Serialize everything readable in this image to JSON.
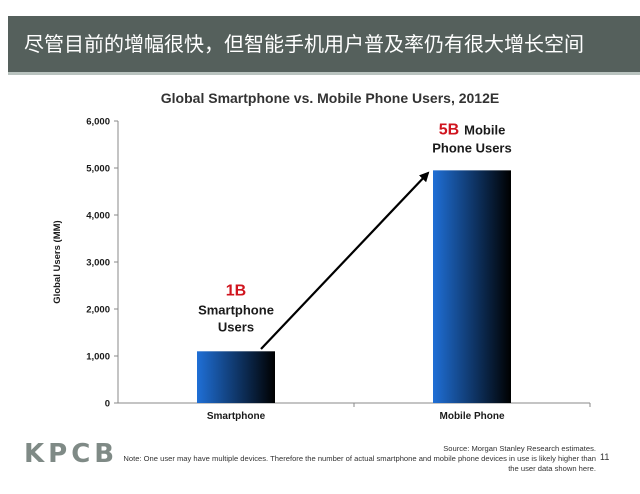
{
  "header": {
    "title": "尽管目前的增幅很快，但智能手机用户普及率仍有很大增长空间"
  },
  "chart_data": {
    "type": "bar",
    "title": "Global Smartphone vs. Mobile Phone Users, 2012E",
    "xlabel": "",
    "ylabel": "Global Users (MM)",
    "ylim": [
      0,
      6000
    ],
    "yticks": [
      "0",
      "1,000",
      "2,000",
      "3,000",
      "4,000",
      "5,000",
      "6,000"
    ],
    "grid": false,
    "legend": "none",
    "categories": [
      "Smartphone",
      "Mobile Phone"
    ],
    "values": [
      1100,
      4950
    ],
    "annotations": [
      {
        "highlight": "1B",
        "line1": "",
        "line2": "Smartphone",
        "line3": "Users"
      },
      {
        "highlight": "5B",
        "line1": "Mobile",
        "line2": "Phone Users",
        "line3": ""
      }
    ],
    "colors": {
      "bar_top": "#1f6fd6",
      "bar_bottom": "#000000",
      "highlight": "#d0141e",
      "text": "#1a1a1a",
      "axis": "#888888"
    }
  },
  "footer": {
    "logo": "KPCB",
    "source": "Source: Morgan Stanley Research estimates.",
    "note_line1": "Note: One user may have multiple devices. Therefore the number of actual smartphone and mobile phone devices in use is likely higher than",
    "note_line2": "the user data shown here.",
    "page_number": "11"
  }
}
